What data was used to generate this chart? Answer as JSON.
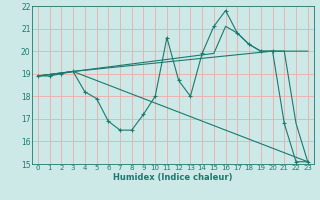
{
  "xlabel": "Humidex (Indice chaleur)",
  "bg_color": "#cce9e7",
  "grid_color": "#f0aaaa",
  "line_color": "#1a7a6e",
  "xlim": [
    -0.5,
    23.5
  ],
  "ylim": [
    15,
    22
  ],
  "xticks": [
    0,
    1,
    2,
    3,
    4,
    5,
    6,
    7,
    8,
    9,
    10,
    11,
    12,
    13,
    14,
    15,
    16,
    17,
    18,
    19,
    20,
    21,
    22,
    23
  ],
  "yticks": [
    15,
    16,
    17,
    18,
    19,
    20,
    21,
    22
  ],
  "series1_x": [
    0,
    1,
    2,
    3,
    4,
    5,
    6,
    7,
    8,
    9,
    10,
    11,
    12,
    13,
    14,
    15,
    16,
    17,
    18,
    19,
    20,
    21,
    22,
    23
  ],
  "series1_y": [
    18.9,
    18.9,
    19.0,
    19.1,
    18.2,
    17.9,
    16.9,
    16.5,
    16.5,
    17.2,
    18.0,
    20.6,
    18.7,
    18.0,
    19.9,
    21.1,
    21.8,
    20.8,
    20.3,
    20.0,
    20.0,
    16.8,
    15.1,
    15.1
  ],
  "series2_x": [
    0,
    3,
    23
  ],
  "series2_y": [
    18.9,
    19.1,
    15.1
  ],
  "series3_x": [
    0,
    3,
    20,
    23
  ],
  "series3_y": [
    18.9,
    19.1,
    20.0,
    20.0
  ],
  "series4_x": [
    0,
    3,
    15,
    16,
    17,
    18,
    19,
    20,
    21,
    22,
    23
  ],
  "series4_y": [
    18.9,
    19.1,
    19.9,
    21.1,
    20.8,
    20.3,
    20.0,
    20.0,
    20.0,
    16.8,
    15.1
  ]
}
